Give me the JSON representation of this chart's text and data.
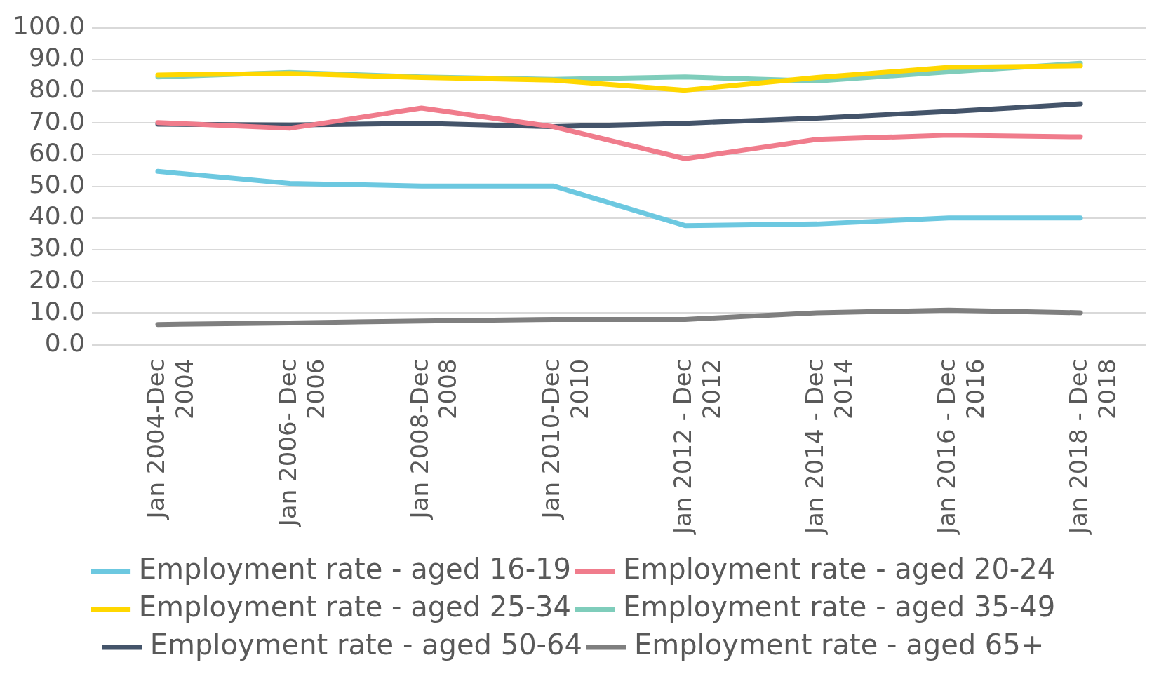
{
  "chart_data": {
    "type": "line",
    "categories": [
      "Jan 2004-Dec 2004",
      "Jan 2006- Dec 2006",
      "Jan 2008-Dec 2008",
      "Jan 2010-Dec 2010",
      "Jan 2012 - Dec 2012",
      "Jan 2014 - Dec 2014",
      "Jan 2016 - Dec 2016",
      "Jan 2018 - Dec 2018"
    ],
    "series": [
      {
        "name": "Employment rate - aged 16-19",
        "color": "#6cc8e0",
        "values": [
          54.7,
          50.9,
          50.1,
          50.1,
          37.6,
          38.1,
          40.0,
          40.0
        ]
      },
      {
        "name": "Employment rate - aged 20-24",
        "color": "#f07c8c",
        "values": [
          70.1,
          68.3,
          74.7,
          68.8,
          58.7,
          64.8,
          66.1,
          65.6
        ]
      },
      {
        "name": "Employment rate - aged 25-34",
        "color": "#ffd700",
        "values": [
          85.1,
          85.6,
          84.3,
          83.5,
          80.3,
          84.3,
          87.5,
          88.0
        ]
      },
      {
        "name": "Employment rate - aged 35-49",
        "color": "#7fcdbb",
        "values": [
          84.5,
          85.9,
          84.5,
          83.7,
          84.5,
          83.2,
          86.1,
          88.8
        ]
      },
      {
        "name": "Employment rate - aged 50-64",
        "color": "#44546a",
        "values": [
          69.6,
          69.3,
          69.9,
          68.8,
          69.9,
          71.5,
          73.6,
          76.0
        ]
      },
      {
        "name": "Employment rate - aged 65+",
        "color": "#7f7f7f",
        "values": [
          6.4,
          6.9,
          7.5,
          8.0,
          8.0,
          10.1,
          10.9,
          10.1
        ]
      }
    ],
    "ylim": [
      0,
      100
    ],
    "yticks": [
      {
        "value": 0,
        "label": "0.0"
      },
      {
        "value": 10,
        "label": "10.0"
      },
      {
        "value": 20,
        "label": "20.0"
      },
      {
        "value": 30,
        "label": "30.0"
      },
      {
        "value": 40,
        "label": "40.0"
      },
      {
        "value": 50,
        "label": "50.0"
      },
      {
        "value": 60,
        "label": "60.0"
      },
      {
        "value": 70,
        "label": "70.0"
      },
      {
        "value": 80,
        "label": "80.0"
      },
      {
        "value": 90,
        "label": "90.0"
      },
      {
        "value": 100,
        "label": "100.0"
      }
    ],
    "grid": "y",
    "legend": "bottom",
    "marker": "none",
    "line_style": "solid"
  }
}
